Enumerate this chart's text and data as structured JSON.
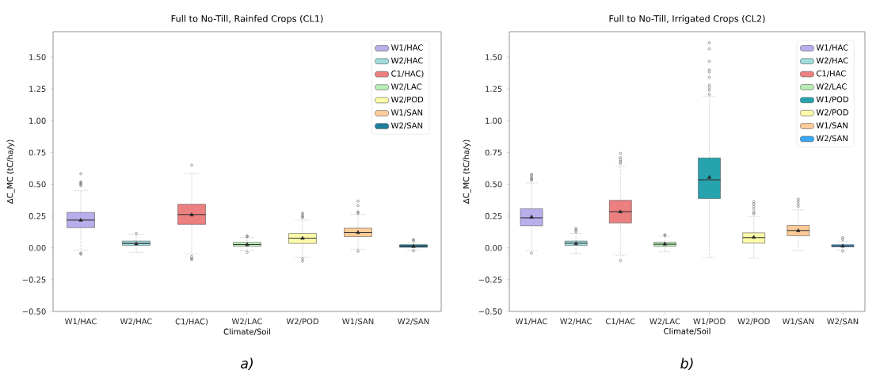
{
  "chart_data": [
    {
      "type": "box",
      "title": "Full to No-Till, Rainfed Crops (CL1)",
      "xlabel": "Climate/Soil",
      "ylabel": "ΔC_MC (tC/ha/y)",
      "categories": [
        "W1/HAC",
        "W2/HAC",
        "C1/HAC)",
        "W2/LAC",
        "W2/POD",
        "W1/SAN",
        "W2/SAN"
      ],
      "series": [
        {
          "name": "W1/HAC",
          "color": "#b9aeeb",
          "boxes": [
            {
              "low": -0.017,
              "q1": 0.159,
              "median": 0.219,
              "q3": 0.279,
              "high": 0.452,
              "mean": 0.217,
              "outliers": [
                0.583,
                0.52,
                0.51,
                0.5,
                0.49,
                -0.04,
                -0.05
              ]
            },
            null,
            null,
            null,
            null,
            null,
            null
          ]
        },
        {
          "name": "W2/HAC",
          "color": "#a0dcdc",
          "boxes": [
            null,
            {
              "low": -0.035,
              "q1": 0.019,
              "median": 0.035,
              "q3": 0.054,
              "high": 0.107,
              "mean": 0.031,
              "outliers": [
                0.114
              ]
            },
            null,
            null,
            null,
            null,
            null
          ]
        },
        {
          "name": "C1/HAC)",
          "color": "#ec7f7f",
          "boxes": [
            null,
            null,
            {
              "low": -0.048,
              "q1": 0.184,
              "median": 0.262,
              "q3": 0.343,
              "high": 0.585,
              "mean": 0.26,
              "outliers": [
                0.649,
                -0.068,
                -0.083,
                -0.093
              ]
            },
            null,
            null,
            null,
            null
          ]
        },
        {
          "name": "W2/LAC",
          "color": "#b9edb5",
          "boxes": [
            null,
            null,
            null,
            {
              "low": -0.023,
              "q1": 0.012,
              "median": 0.027,
              "q3": 0.043,
              "high": 0.083,
              "mean": 0.025,
              "outliers": [
                0.095,
                0.087,
                -0.035
              ]
            },
            null,
            null,
            null
          ]
        },
        {
          "name": "W2/POD",
          "color": "#fcfbaa",
          "boxes": [
            null,
            null,
            null,
            null,
            {
              "low": -0.072,
              "q1": 0.035,
              "median": 0.076,
              "q3": 0.114,
              "high": 0.219,
              "mean": 0.075,
              "outliers": [
                0.275,
                0.262,
                0.248,
                0.238,
                -0.085,
                -0.105
              ]
            },
            null,
            null
          ]
        },
        {
          "name": "W1/SAN",
          "color": "#fdcb98",
          "boxes": [
            null,
            null,
            null,
            null,
            null,
            {
              "low": -0.012,
              "q1": 0.089,
              "median": 0.12,
              "q3": 0.155,
              "high": 0.262,
              "mean": 0.12,
              "outliers": [
                0.368,
                0.333,
                0.283,
                0.273,
                -0.025
              ]
            },
            null
          ]
        },
        {
          "name": "W2/SAN",
          "color": "#1f7f9a",
          "boxes": [
            null,
            null,
            null,
            null,
            null,
            null,
            {
              "low": -0.019,
              "q1": 0.004,
              "median": 0.014,
              "q3": 0.025,
              "high": 0.041,
              "mean": 0.012,
              "outliers": [
                0.066,
                0.056,
                -0.023
              ]
            }
          ]
        }
      ],
      "ylim": [
        -0.5,
        1.7
      ],
      "yticks": [
        {
          "value": -0.5,
          "label": "−0.50"
        },
        {
          "value": -0.25,
          "label": "−0.25"
        },
        {
          "value": 0,
          "label": "0.00"
        },
        {
          "value": 0.25,
          "label": "0.25"
        },
        {
          "value": 0.5,
          "label": "0.50"
        },
        {
          "value": 0.75,
          "label": "0.75"
        },
        {
          "value": 1,
          "label": "1.00"
        },
        {
          "value": 1.25,
          "label": "1.25"
        },
        {
          "value": 1.5,
          "label": "1.50"
        }
      ],
      "legend": "top right",
      "annotations": [
        "a)"
      ]
    },
    {
      "type": "box",
      "title": "Full to No-Till, Irrigated Crops (CL2)",
      "xlabel": "Climate/Soil",
      "ylabel": "ΔC_MC (tC/ha/y)",
      "categories": [
        "W1/HAC",
        "W2/HAC",
        "C1/HAC",
        "W2/LAC",
        "W1/POD",
        "W2/POD",
        "W1/SAN",
        "W2/SAN"
      ],
      "series": [
        {
          "name": "W1/HAC",
          "color": "#b9aeeb",
          "boxes": [
            {
              "low": -0.023,
              "q1": 0.174,
              "median": 0.236,
              "q3": 0.308,
              "high": 0.51,
              "mean": 0.242,
              "outliers": [
                0.579,
                0.568,
                0.552,
                0.541,
                0.531,
                -0.041
              ]
            },
            null,
            null,
            null,
            null,
            null,
            null,
            null
          ]
        },
        {
          "name": "W2/HAC",
          "color": "#a0dcdc",
          "boxes": [
            null,
            {
              "low": -0.043,
              "q1": 0.019,
              "median": 0.037,
              "q3": 0.054,
              "high": 0.114,
              "mean": 0.033,
              "outliers": [
                0.153,
                0.14,
                0.128
              ]
            },
            null,
            null,
            null,
            null,
            null,
            null
          ]
        },
        {
          "name": "C1/HAC",
          "color": "#ec7f7f",
          "boxes": [
            null,
            null,
            {
              "low": -0.058,
              "q1": 0.196,
              "median": 0.285,
              "q3": 0.374,
              "high": 0.643,
              "mean": 0.283,
              "outliers": [
                0.743,
                0.71,
                0.693,
                0.678,
                0.664,
                -0.1
              ]
            },
            null,
            null,
            null,
            null,
            null
          ]
        },
        {
          "name": "W2/LAC",
          "color": "#b9edb5",
          "boxes": [
            null,
            null,
            null,
            {
              "low": -0.031,
              "q1": 0.012,
              "median": 0.029,
              "q3": 0.044,
              "high": 0.091,
              "mean": 0.03,
              "outliers": [
                0.104,
                0.097
              ]
            },
            null,
            null,
            null,
            null
          ]
        },
        {
          "name": "W1/POD",
          "color": "#27a3ae",
          "boxes": [
            null,
            null,
            null,
            null,
            {
              "low": -0.077,
              "q1": 0.388,
              "median": 0.535,
              "q3": 0.707,
              "high": 1.193,
              "mean": 0.554,
              "outliers": [
                1.612,
                1.566,
                1.467,
                1.4,
                1.384,
                1.342,
                1.28,
                1.259,
                1.239,
                1.207
              ]
            },
            null,
            null,
            null
          ]
        },
        {
          "name": "W2/POD",
          "color": "#fcfbaa",
          "boxes": [
            null,
            null,
            null,
            null,
            null,
            {
              "low": -0.081,
              "q1": 0.037,
              "median": 0.081,
              "q3": 0.118,
              "high": 0.245,
              "mean": 0.083,
              "outliers": [
                0.363,
                0.346,
                0.326,
                0.305,
                0.28,
                0.268
              ]
            },
            null,
            null
          ]
        },
        {
          "name": "W1/SAN",
          "color": "#fdcb98",
          "boxes": [
            null,
            null,
            null,
            null,
            null,
            null,
            {
              "low": -0.021,
              "q1": 0.095,
              "median": 0.137,
              "q3": 0.176,
              "high": 0.299,
              "mean": 0.135,
              "outliers": [
                0.384,
                0.367,
                0.346,
                0.326
              ]
            },
            null
          ]
        },
        {
          "name": "W2/SAN",
          "color": "#3aa8f4",
          "boxes": [
            null,
            null,
            null,
            null,
            null,
            null,
            null,
            {
              "low": -0.017,
              "q1": 0.008,
              "median": 0.015,
              "q3": 0.025,
              "high": 0.05,
              "mean": 0.013,
              "outliers": [
                0.081,
                0.066,
                -0.025
              ]
            }
          ]
        }
      ],
      "ylim": [
        -0.5,
        1.7
      ],
      "yticks": [
        {
          "value": -0.5,
          "label": "−0.50"
        },
        {
          "value": -0.25,
          "label": "−0.25"
        },
        {
          "value": 0,
          "label": "0.00"
        },
        {
          "value": 0.25,
          "label": "0.25"
        },
        {
          "value": 0.5,
          "label": "0.50"
        },
        {
          "value": 0.75,
          "label": "0.75"
        },
        {
          "value": 1,
          "label": "1.00"
        },
        {
          "value": 1.25,
          "label": "1.25"
        },
        {
          "value": 1.5,
          "label": "1.50"
        }
      ],
      "legend": "top right",
      "annotations": [
        "b)"
      ]
    }
  ]
}
